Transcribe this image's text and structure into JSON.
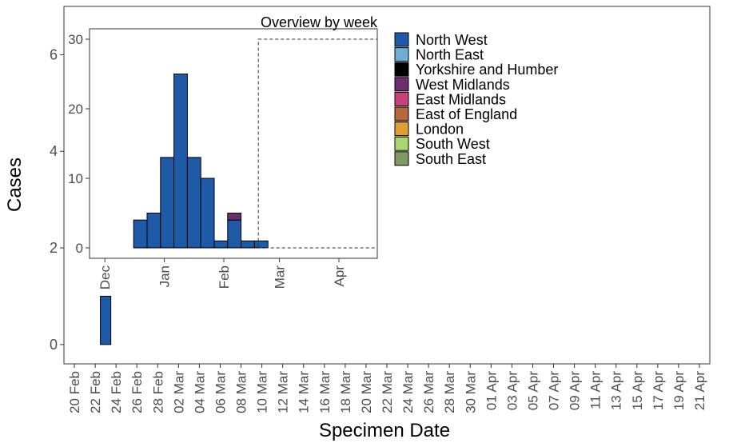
{
  "colors": {
    "north_west": "#1f5aa6",
    "west_midlands": "#6b2d6b",
    "bar_outline": "#000000",
    "axis_text": "#4d4d4d",
    "panel_border": "#333333"
  },
  "chart_data": [
    {
      "type": "bar",
      "name": "main",
      "xlabel": "Specimen Date",
      "ylabel": "Cases",
      "ylim": [
        -0.4,
        7
      ],
      "yticks": [
        0,
        2,
        4,
        6
      ],
      "xlim": [
        "2020-02-19",
        "2020-04-21"
      ],
      "x_tick_labels": [
        "20 Feb",
        "22 Feb",
        "24 Feb",
        "26 Feb",
        "28 Feb",
        "02 Mar",
        "04 Mar",
        "06 Mar",
        "08 Mar",
        "10 Mar",
        "12 Mar",
        "14 Mar",
        "16 Mar",
        "18 Mar",
        "20 Mar",
        "22 Mar",
        "24 Mar",
        "26 Mar",
        "28 Mar",
        "30 Mar",
        "01 Apr",
        "03 Apr",
        "05 Apr",
        "07 Apr",
        "09 Apr",
        "11 Apr",
        "13 Apr",
        "15 Apr",
        "17 Apr",
        "19 Apr",
        "21 Apr"
      ],
      "series": [
        {
          "name": "North West",
          "color": "#1f5aa6",
          "points": [
            {
              "date": "2020-02-23",
              "value": 1
            }
          ]
        }
      ],
      "grid": false
    },
    {
      "type": "bar",
      "name": "inset",
      "title": "Overview by week",
      "ylim": [
        -1.5,
        31.5
      ],
      "yticks": [
        0,
        10,
        20,
        30
      ],
      "x_tick_labels": [
        "Dec",
        "Jan",
        "Feb",
        "Mar",
        "Apr"
      ],
      "x_tick_dates": [
        "2019-12-01",
        "2020-01-01",
        "2020-02-01",
        "2020-03-01",
        "2020-04-01"
      ],
      "xlim": [
        "2019-11-23",
        "2020-04-21"
      ],
      "series": [
        {
          "name": "North West",
          "color": "#1f5aa6",
          "weeks": [
            "2019-12-16",
            "2019-12-23",
            "2019-12-30",
            "2020-01-06",
            "2020-01-13",
            "2020-01-20",
            "2020-01-27",
            "2020-02-03",
            "2020-02-10",
            "2020-02-17",
            "2020-02-24"
          ],
          "values": [
            4,
            5,
            13,
            25,
            13,
            10,
            1,
            4,
            1,
            1,
            0
          ]
        },
        {
          "name": "West Midlands",
          "color": "#6b2d6b",
          "weeks": [
            "2020-02-03"
          ],
          "values": [
            1
          ]
        }
      ],
      "highlight_window": {
        "start": "2020-02-19",
        "end": "2020-04-21",
        "ymin": 0,
        "ymax": 30
      },
      "grid": false
    }
  ],
  "legend": {
    "placement": "right",
    "items": [
      {
        "label": "North West",
        "color": "#1f5aa6"
      },
      {
        "label": "North East",
        "color": "#6baed6"
      },
      {
        "label": "Yorkshire and Humber",
        "color": "#000000"
      },
      {
        "label": "West Midlands",
        "color": "#6b2d6b"
      },
      {
        "label": "East Midlands",
        "color": "#c9417a"
      },
      {
        "label": "East of England",
        "color": "#b5683c"
      },
      {
        "label": "London",
        "color": "#e0a030"
      },
      {
        "label": "South West",
        "color": "#a9d86e"
      },
      {
        "label": "South East",
        "color": "#7f9a63"
      }
    ]
  }
}
